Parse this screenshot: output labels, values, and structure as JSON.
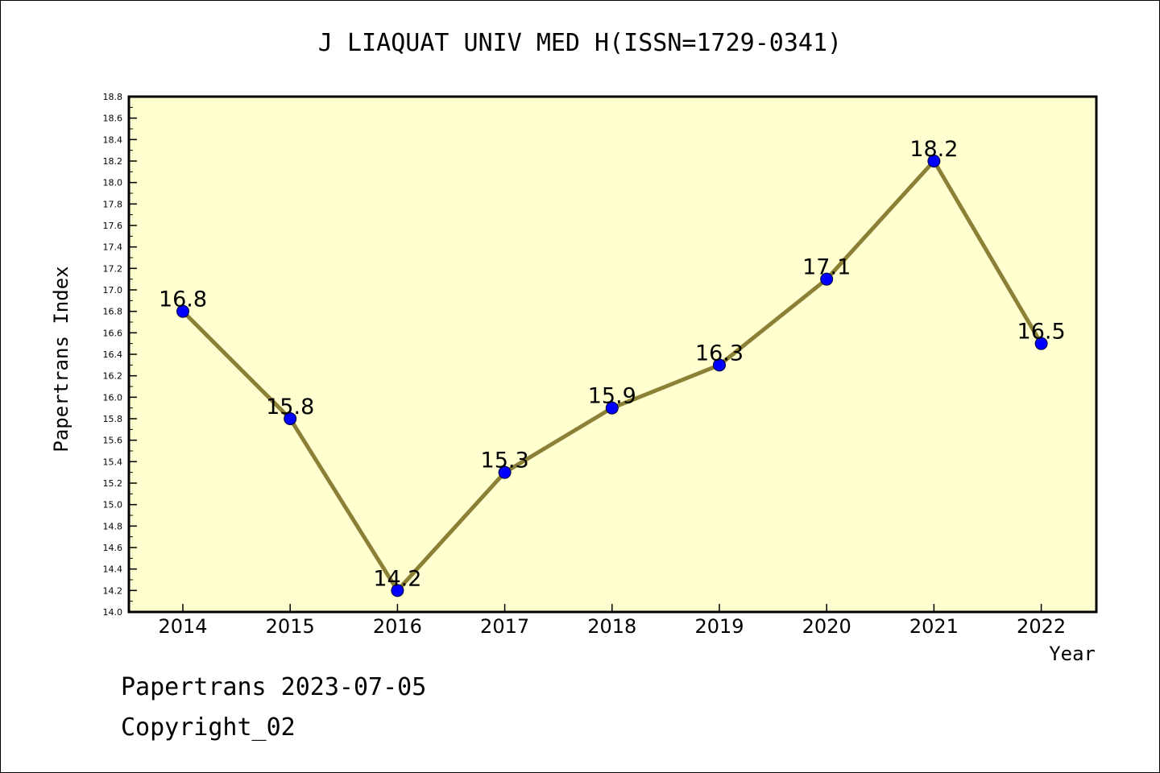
{
  "chart_data": {
    "type": "line",
    "title": "J LIAQUAT UNIV MED H(ISSN=1729-0341)",
    "xlabel": "Year",
    "ylabel": "Papertrans Index",
    "categories": [
      "2014",
      "2015",
      "2016",
      "2017",
      "2018",
      "2019",
      "2020",
      "2021",
      "2022"
    ],
    "values": [
      16.8,
      15.8,
      14.2,
      15.3,
      15.9,
      16.3,
      17.1,
      18.2,
      16.5
    ],
    "data_labels": [
      "16.8",
      "15.8",
      "14.2",
      "15.3",
      "15.9",
      "16.3",
      "17.1",
      "18.2",
      "16.5"
    ],
    "ylim": [
      14.0,
      18.8
    ],
    "yticks": [
      "14.0",
      "14.2",
      "14.4",
      "14.6",
      "14.8",
      "15.0",
      "15.2",
      "15.4",
      "15.6",
      "15.8",
      "16.0",
      "16.2",
      "16.4",
      "16.6",
      "16.8",
      "17.0",
      "17.2",
      "17.4",
      "17.6",
      "17.8",
      "18.0",
      "18.2",
      "18.4",
      "18.6",
      "18.8"
    ],
    "grid": false,
    "colors": {
      "plot_background": "#ffffd0",
      "line": "#8b8035",
      "marker": "#0000ff"
    }
  },
  "footer": {
    "line1": "Papertrans 2023-07-05",
    "line2": "Copyright_02"
  }
}
